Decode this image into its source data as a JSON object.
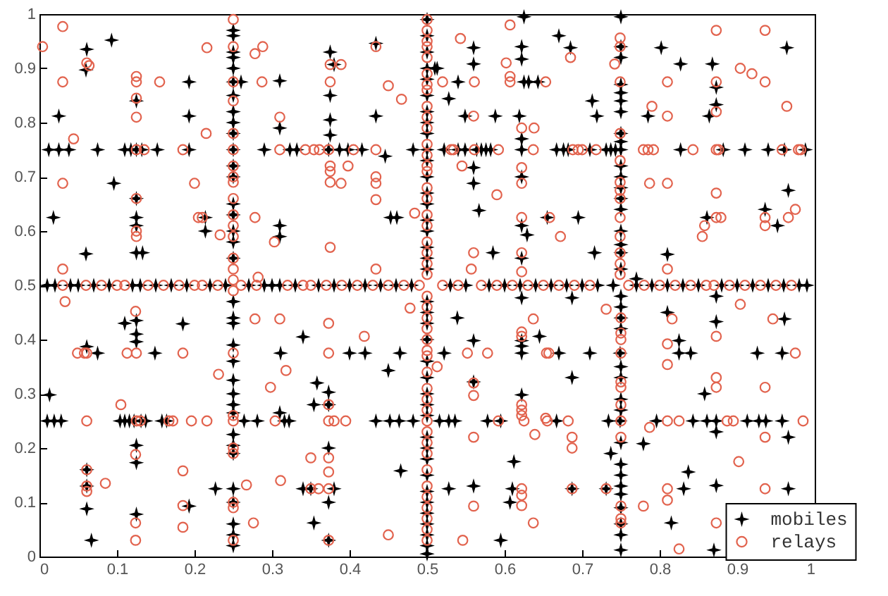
{
  "chart_data": {
    "type": "scatter",
    "xlim": [
      0,
      1
    ],
    "ylim": [
      0,
      1
    ],
    "xticks": [
      0,
      0.1,
      0.2,
      0.3,
      0.4,
      0.5,
      0.6,
      0.7,
      0.8,
      0.9,
      1
    ],
    "yticks": [
      0,
      0.1,
      0.2,
      0.3,
      0.4,
      0.5,
      0.6,
      0.7,
      0.8,
      0.9,
      1
    ],
    "grid": false,
    "legend": "bottom right",
    "series": [
      {
        "name": "mobiles",
        "color": "#000000",
        "marker": "star",
        "x": [
          0.061,
          0.06,
          0.093,
          0.025,
          0.012,
          0.025,
          0.038,
          0.075,
          0.11,
          0.118,
          0.125,
          0.132,
          0.152,
          0.096,
          0.018,
          0.06,
          0.125,
          0.125,
          0.125,
          0.125,
          0.125,
          0.133,
          0.193,
          0.193,
          0.193,
          0.25,
          0.25,
          0.25,
          0.25,
          0.25,
          0.25,
          0.25,
          0.25,
          0.25,
          0.25,
          0.25,
          0.25,
          0.25,
          0.25,
          0.25,
          0.25,
          0.25,
          0.25,
          0.26,
          0.214,
          0.214,
          0.31,
          0.31,
          0.31,
          0.31,
          0.29,
          0.323,
          0.332,
          0.373,
          0.387,
          0.398,
          0.416,
          0.375,
          0.375,
          0.375,
          0.375,
          0.38,
          0.434,
          0.434,
          0.446,
          0.453,
          0.461,
          0.482,
          0.51,
          0.625,
          0.67,
          0.685,
          0.56,
          0.56,
          0.622,
          0.622,
          0.513,
          0.54,
          0.625,
          0.631,
          0.643,
          0.528,
          0.713,
          0.549,
          0.588,
          0.619,
          0.719,
          0.785,
          0.864,
          0.75,
          0.75,
          0.75,
          0.75,
          0.75,
          0.75,
          0.75,
          0.75,
          0.75,
          0.75,
          0.75,
          0.75,
          0.75,
          0.75,
          0.75,
          0.75,
          0.75,
          0.75,
          0.75,
          0.802,
          0.827,
          0.868,
          0.873,
          0.873,
          0.964,
          0.522,
          0.54,
          0.549,
          0.564,
          0.57,
          0.576,
          0.582,
          0.622,
          0.667,
          0.676,
          0.682,
          0.71,
          0.731,
          0.737,
          0.743,
          0.827,
          0.882,
          0.91,
          0.94,
          0.961,
          0.988,
          0.56,
          0.56,
          0.622,
          0.622,
          0.567,
          0.655,
          0.695,
          0.622,
          0.629,
          0.585,
          0.716,
          0.622,
          0.77,
          0.81,
          0.861,
          0.936,
          0.952,
          0.966,
          0.013,
          0.01,
          0.019,
          0.028,
          0.104,
          0.11,
          0.116,
          0.122,
          0.131,
          0.137,
          0.158,
          0.164,
          0.264,
          0.281,
          0.316,
          0.322,
          0.434,
          0.452,
          0.464,
          0.482,
          0.061,
          0.061,
          0.061,
          0.067,
          0.061,
          0.075,
          0.11,
          0.125,
          0.125,
          0.125,
          0.125,
          0.125,
          0.125,
          0.149,
          0.185,
          0.193,
          0.227,
          0.25,
          0.25,
          0.25,
          0.25,
          0.25,
          0.25,
          0.25,
          0.25,
          0.25,
          0.25,
          0.25,
          0.25,
          0.25,
          0.25,
          0.25,
          0.25,
          0.25,
          0.311,
          0.31,
          0.34,
          0.34,
          0.35,
          0.38,
          0.358,
          0.354,
          0.354,
          0.373,
          0.373,
          0.373,
          0.373,
          0.373,
          0.4,
          0.42,
          0.465,
          0.45,
          0.466,
          0.622,
          0.687,
          0.539,
          0.56,
          0.522,
          0.622,
          0.622,
          0.622,
          0.645,
          0.67,
          0.71,
          0.749,
          0.687,
          0.622,
          0.56,
          0.516,
          0.528,
          0.536,
          0.578,
          0.595,
          0.667,
          0.734,
          0.749,
          0.796,
          0.843,
          0.861,
          0.873,
          0.913,
          0.928,
          0.937,
          0.958,
          0.873,
          0.966,
          0.779,
          0.737,
          0.612,
          0.837,
          0.528,
          0.56,
          0.61,
          0.607,
          0.687,
          0.731,
          0.831,
          0.873,
          0.966,
          0.81,
          0.825,
          0.825,
          0.84,
          0.873,
          0.873,
          0.858,
          0.926,
          0.958,
          0.961,
          0.815,
          0.87,
          0.595,
          0.75,
          0.75,
          0.75,
          0.75,
          0.75,
          0.75,
          0.75,
          0.75,
          0.75,
          0.75,
          0.75,
          0.75,
          0.75,
          0.75,
          0.75,
          0.75,
          0.75,
          0.01,
          0.02,
          0.04,
          0.05,
          0.07,
          0.09,
          0.12,
          0.13,
          0.15,
          0.17,
          0.19,
          0.22,
          0.24,
          0.27,
          0.29,
          0.3,
          0.31,
          0.33,
          0.36,
          0.38,
          0.4,
          0.42,
          0.44,
          0.46,
          0.48,
          0.53,
          0.55,
          0.58,
          0.6,
          0.62,
          0.64,
          0.66,
          0.68,
          0.7,
          0.72,
          0.74,
          0.77,
          0.79,
          0.81,
          0.83,
          0.85,
          0.88,
          0.9,
          0.92,
          0.94,
          0.96,
          0.98,
          0.99,
          0.5,
          0.5,
          0.5,
          0.5,
          0.5,
          0.5,
          0.5,
          0.5,
          0.5,
          0.5,
          0.5,
          0.5,
          0.5,
          0.5,
          0.5,
          0.5,
          0.5,
          0.5,
          0.5,
          0.5,
          0.5,
          0.5,
          0.5,
          0.5,
          0.5,
          0.5,
          0.5,
          0.5,
          0.5,
          0.5,
          0.5,
          0.5,
          0.5,
          0.5,
          0.5,
          0.5,
          0.5,
          0.5,
          0.5
        ],
        "values": [
          0.935,
          0.897,
          0.952,
          0.812,
          0.75,
          0.75,
          0.75,
          0.75,
          0.75,
          0.75,
          0.75,
          0.75,
          0.75,
          0.688,
          0.625,
          0.558,
          0.84,
          0.66,
          0.625,
          0.61,
          0.56,
          0.56,
          0.875,
          0.812,
          0.75,
          0.97,
          0.96,
          0.93,
          0.92,
          0.9,
          0.875,
          0.85,
          0.82,
          0.8,
          0.78,
          0.75,
          0.72,
          0.7,
          0.65,
          0.63,
          0.6,
          0.58,
          0.55,
          0.875,
          0.625,
          0.6,
          0.877,
          0.79,
          0.61,
          0.59,
          0.75,
          0.75,
          0.75,
          0.75,
          0.75,
          0.75,
          0.75,
          0.93,
          0.85,
          0.805,
          0.777,
          0.907,
          0.946,
          0.812,
          0.738,
          0.625,
          0.625,
          0.75,
          0.9,
          0.995,
          0.96,
          0.938,
          0.938,
          0.908,
          0.94,
          0.917,
          0.9,
          0.875,
          0.875,
          0.875,
          0.875,
          0.844,
          0.84,
          0.812,
          0.812,
          0.812,
          0.812,
          0.812,
          0.812,
          0.995,
          0.94,
          0.92,
          0.87,
          0.855,
          0.84,
          0.82,
          0.78,
          0.765,
          0.75,
          0.72,
          0.7,
          0.68,
          0.66,
          0.64,
          0.6,
          0.575,
          0.56,
          0.53,
          0.938,
          0.908,
          0.908,
          0.865,
          0.833,
          0.938,
          0.75,
          0.75,
          0.75,
          0.75,
          0.75,
          0.75,
          0.75,
          0.75,
          0.75,
          0.75,
          0.75,
          0.75,
          0.75,
          0.75,
          0.75,
          0.75,
          0.75,
          0.75,
          0.75,
          0.75,
          0.75,
          0.717,
          0.688,
          0.77,
          0.7,
          0.638,
          0.625,
          0.625,
          0.61,
          0.593,
          0.56,
          0.56,
          0.55,
          0.512,
          0.557,
          0.625,
          0.64,
          0.61,
          0.675,
          0.298,
          0.25,
          0.25,
          0.25,
          0.25,
          0.25,
          0.25,
          0.25,
          0.25,
          0.25,
          0.25,
          0.25,
          0.25,
          0.25,
          0.25,
          0.25,
          0.25,
          0.25,
          0.25,
          0.25,
          0.16,
          0.13,
          0.088,
          0.03,
          0.387,
          0.375,
          0.43,
          0.435,
          0.41,
          0.396,
          0.205,
          0.173,
          0.078,
          0.375,
          0.429,
          0.093,
          0.125,
          0.47,
          0.44,
          0.43,
          0.39,
          0.36,
          0.325,
          0.3,
          0.28,
          0.265,
          0.225,
          0.205,
          0.19,
          0.125,
          0.1,
          0.06,
          0.04,
          0.02,
          0.375,
          0.265,
          0.405,
          0.125,
          0.125,
          0.125,
          0.32,
          0.28,
          0.062,
          0.303,
          0.28,
          0.2,
          0.1,
          0.03,
          0.375,
          0.375,
          0.375,
          0.343,
          0.158,
          0.477,
          0.477,
          0.44,
          0.398,
          0.375,
          0.398,
          0.388,
          0.375,
          0.406,
          0.375,
          0.375,
          0.375,
          0.33,
          0.298,
          0.322,
          0.25,
          0.25,
          0.25,
          0.25,
          0.25,
          0.25,
          0.25,
          0.25,
          0.25,
          0.25,
          0.25,
          0.25,
          0.25,
          0.25,
          0.25,
          0.25,
          0.23,
          0.22,
          0.208,
          0.19,
          0.175,
          0.156,
          0.125,
          0.13,
          0.125,
          0.1,
          0.125,
          0.125,
          0.125,
          0.131,
          0.125,
          0.45,
          0.398,
          0.375,
          0.375,
          0.48,
          0.433,
          0.3,
          0.375,
          0.375,
          0.438,
          0.062,
          0.012,
          0.03,
          0.48,
          0.46,
          0.44,
          0.42,
          0.35,
          0.33,
          0.29,
          0.27,
          0.21,
          0.17,
          0.15,
          0.13,
          0.115,
          0.09,
          0.06,
          0.04,
          0.012,
          0.5,
          0.5,
          0.5,
          0.5,
          0.5,
          0.5,
          0.5,
          0.5,
          0.5,
          0.5,
          0.5,
          0.5,
          0.5,
          0.5,
          0.5,
          0.5,
          0.5,
          0.5,
          0.5,
          0.5,
          0.5,
          0.5,
          0.5,
          0.5,
          0.5,
          0.5,
          0.5,
          0.5,
          0.5,
          0.5,
          0.5,
          0.5,
          0.5,
          0.5,
          0.5,
          0.5,
          0.5,
          0.5,
          0.5,
          0.5,
          0.5,
          0.5,
          0.5,
          0.5,
          0.5,
          0.5,
          0.5,
          0.5,
          0.005,
          0.02,
          0.04,
          0.06,
          0.08,
          0.1,
          0.12,
          0.15,
          0.18,
          0.2,
          0.22,
          0.26,
          0.28,
          0.3,
          0.33,
          0.36,
          0.4,
          0.43,
          0.45,
          0.47,
          0.53,
          0.55,
          0.57,
          0.6,
          0.62,
          0.65,
          0.67,
          0.7,
          0.73,
          0.75,
          0.78,
          0.8,
          0.82,
          0.85,
          0.88,
          0.9,
          0.93,
          0.96,
          0.99
        ]
      },
      {
        "name": "relays",
        "color": "#e2634e",
        "marker": "circle",
        "x": [
          0.004,
          0.03,
          0.03,
          0.03,
          0.044,
          0.03,
          0.061,
          0.064,
          0.125,
          0.125,
          0.125,
          0.125,
          0.125,
          0.125,
          0.125,
          0.125,
          0.155,
          0.185,
          0.2,
          0.205,
          0.21,
          0.215,
          0.216,
          0.233,
          0.25,
          0.25,
          0.25,
          0.25,
          0.25,
          0.25,
          0.25,
          0.25,
          0.25,
          0.25,
          0.25,
          0.25,
          0.25,
          0.25,
          0.25,
          0.25,
          0.278,
          0.288,
          0.287,
          0.278,
          0.282,
          0.303,
          0.31,
          0.31,
          0.343,
          0.354,
          0.361,
          0.373,
          0.405,
          0.434,
          0.375,
          0.375,
          0.375,
          0.375,
          0.375,
          0.375,
          0.389,
          0.398,
          0.389,
          0.434,
          0.434,
          0.434,
          0.434,
          0.434,
          0.45,
          0.467,
          0.484,
          0.135,
          0.543,
          0.607,
          0.602,
          0.607,
          0.607,
          0.561,
          0.52,
          0.653,
          0.685,
          0.742,
          0.749,
          0.749,
          0.749,
          0.873,
          0.936,
          0.904,
          0.919,
          0.936,
          0.964,
          0.81,
          0.873,
          0.79,
          0.81,
          0.873,
          0.56,
          0.622,
          0.638,
          0.531,
          0.534,
          0.561,
          0.592,
          0.637,
          0.688,
          0.695,
          0.7,
          0.718,
          0.779,
          0.785,
          0.792,
          0.843,
          0.873,
          0.876,
          0.958,
          0.979,
          0.982,
          0.545,
          0.59,
          0.622,
          0.622,
          0.749,
          0.749,
          0.749,
          0.749,
          0.749,
          0.787,
          0.81,
          0.873,
          0.873,
          0.879,
          0.936,
          0.936,
          0.966,
          0.975,
          0.858,
          0.855,
          0.672,
          0.658,
          0.622,
          0.622,
          0.622,
          0.56,
          0.557,
          0.749,
          0.749,
          0.749,
          0.749,
          0.81,
          0.749,
          0.033,
          0.049,
          0.058,
          0.061,
          0.061,
          0.061,
          0.061,
          0.061,
          0.085,
          0.105,
          0.113,
          0.125,
          0.124,
          0.125,
          0.13,
          0.124,
          0.124,
          0.124,
          0.167,
          0.172,
          0.185,
          0.185,
          0.185,
          0.185,
          0.196,
          0.216,
          0.231,
          0.25,
          0.25,
          0.25,
          0.25,
          0.25,
          0.25,
          0.25,
          0.25,
          0.25,
          0.267,
          0.278,
          0.276,
          0.298,
          0.31,
          0.311,
          0.304,
          0.318,
          0.35,
          0.35,
          0.36,
          0.373,
          0.373,
          0.373,
          0.373,
          0.373,
          0.38,
          0.395,
          0.373,
          0.373,
          0.373,
          0.419,
          0.45,
          0.478,
          0.513,
          0.552,
          0.578,
          0.56,
          0.56,
          0.56,
          0.56,
          0.546,
          0.637,
          0.622,
          0.622,
          0.654,
          0.657,
          0.622,
          0.622,
          0.622,
          0.625,
          0.653,
          0.655,
          0.639,
          0.592,
          0.682,
          0.687,
          0.687,
          0.622,
          0.622,
          0.622,
          0.637,
          0.687,
          0.731,
          0.731,
          0.75,
          0.75,
          0.75,
          0.75,
          0.75,
          0.75,
          0.75,
          0.75,
          0.75,
          0.75,
          0.75,
          0.75,
          0.779,
          0.787,
          0.81,
          0.825,
          0.816,
          0.81,
          0.81,
          0.81,
          0.81,
          0.825,
          0.873,
          0.873,
          0.873,
          0.887,
          0.895,
          0.873,
          0.904,
          0.902,
          0.936,
          0.936,
          0.936,
          0.946,
          0.975,
          0.985,
          0.03,
          0.06,
          0.08,
          0.1,
          0.11,
          0.14,
          0.16,
          0.18,
          0.2,
          0.21,
          0.23,
          0.26,
          0.28,
          0.32,
          0.34,
          0.35,
          0.37,
          0.39,
          0.41,
          0.43,
          0.45,
          0.47,
          0.49,
          0.52,
          0.54,
          0.57,
          0.59,
          0.61,
          0.63,
          0.65,
          0.67,
          0.69,
          0.71,
          0.76,
          0.78,
          0.8,
          0.82,
          0.84,
          0.86,
          0.87,
          0.89,
          0.91,
          0.93,
          0.95,
          0.97,
          0.5,
          0.5,
          0.5,
          0.5,
          0.5,
          0.5,
          0.5,
          0.5,
          0.5,
          0.5,
          0.5,
          0.5,
          0.5,
          0.5,
          0.5,
          0.5,
          0.5,
          0.5,
          0.5,
          0.5,
          0.5,
          0.5,
          0.5,
          0.5,
          0.5,
          0.5,
          0.5,
          0.5,
          0.5,
          0.5,
          0.5,
          0.5,
          0.5,
          0.5,
          0.5,
          0.5,
          0.5,
          0.5,
          0.5,
          0.5,
          0.5,
          0.5,
          0.5,
          0.5,
          0.5
        ],
        "values": [
          0.94,
          0.977,
          0.875,
          0.688,
          0.77,
          0.53,
          0.91,
          0.905,
          0.885,
          0.875,
          0.845,
          0.81,
          0.75,
          0.66,
          0.6,
          0.59,
          0.875,
          0.75,
          0.688,
          0.625,
          0.625,
          0.78,
          0.938,
          0.593,
          0.99,
          0.94,
          0.875,
          0.84,
          0.78,
          0.75,
          0.72,
          0.7,
          0.69,
          0.66,
          0.63,
          0.61,
          0.59,
          0.55,
          0.53,
          0.51,
          0.927,
          0.94,
          0.875,
          0.625,
          0.515,
          0.58,
          0.81,
          0.75,
          0.75,
          0.75,
          0.75,
          0.75,
          0.75,
          0.75,
          0.907,
          0.875,
          0.72,
          0.71,
          0.69,
          0.57,
          0.688,
          0.72,
          0.907,
          0.94,
          0.7,
          0.688,
          0.658,
          0.53,
          0.868,
          0.843,
          0.633,
          0.75,
          0.955,
          0.98,
          0.91,
          0.885,
          0.875,
          0.875,
          0.875,
          0.875,
          0.92,
          0.908,
          0.956,
          0.94,
          0.875,
          0.97,
          0.97,
          0.9,
          0.89,
          0.875,
          0.83,
          0.875,
          0.875,
          0.83,
          0.812,
          0.82,
          0.812,
          0.79,
          0.79,
          0.75,
          0.75,
          0.75,
          0.75,
          0.75,
          0.75,
          0.75,
          0.75,
          0.75,
          0.75,
          0.75,
          0.75,
          0.75,
          0.75,
          0.75,
          0.75,
          0.75,
          0.75,
          0.72,
          0.667,
          0.717,
          0.688,
          0.78,
          0.73,
          0.69,
          0.675,
          0.66,
          0.688,
          0.688,
          0.67,
          0.625,
          0.625,
          0.625,
          0.61,
          0.625,
          0.64,
          0.61,
          0.59,
          0.59,
          0.625,
          0.625,
          0.56,
          0.525,
          0.56,
          0.53,
          0.59,
          0.56,
          0.54,
          0.52,
          0.53,
          0.625,
          0.47,
          0.375,
          0.375,
          0.375,
          0.25,
          0.16,
          0.13,
          0.12,
          0.135,
          0.28,
          0.375,
          0.375,
          0.452,
          0.25,
          0.25,
          0.188,
          0.062,
          0.03,
          0.25,
          0.25,
          0.375,
          0.158,
          0.094,
          0.054,
          0.25,
          0.25,
          0.336,
          0.49,
          0.375,
          0.26,
          0.25,
          0.2,
          0.19,
          0.1,
          0.09,
          0.03,
          0.132,
          0.438,
          0.062,
          0.312,
          0.438,
          0.14,
          0.25,
          0.343,
          0.182,
          0.125,
          0.125,
          0.125,
          0.43,
          0.375,
          0.28,
          0.25,
          0.25,
          0.25,
          0.182,
          0.156,
          0.03,
          0.406,
          0.04,
          0.458,
          0.35,
          0.375,
          0.375,
          0.32,
          0.297,
          0.22,
          0.093,
          0.03,
          0.438,
          0.414,
          0.406,
          0.375,
          0.375,
          0.28,
          0.27,
          0.26,
          0.25,
          0.255,
          0.25,
          0.225,
          0.25,
          0.25,
          0.22,
          0.2,
          0.125,
          0.113,
          0.094,
          0.062,
          0.125,
          0.125,
          0.456,
          0.44,
          0.412,
          0.4,
          0.375,
          0.322,
          0.312,
          0.28,
          0.25,
          0.22,
          0.093,
          0.07,
          0.062,
          0.093,
          0.238,
          0.25,
          0.25,
          0.438,
          0.392,
          0.354,
          0.125,
          0.104,
          0.014,
          0.406,
          0.33,
          0.312,
          0.25,
          0.25,
          0.062,
          0.465,
          0.175,
          0.312,
          0.22,
          0.125,
          0.438,
          0.375,
          0.25,
          0.5,
          0.5,
          0.5,
          0.5,
          0.5,
          0.5,
          0.5,
          0.5,
          0.5,
          0.5,
          0.5,
          0.5,
          0.5,
          0.5,
          0.5,
          0.5,
          0.5,
          0.5,
          0.5,
          0.5,
          0.5,
          0.5,
          0.5,
          0.5,
          0.5,
          0.5,
          0.5,
          0.5,
          0.5,
          0.5,
          0.5,
          0.5,
          0.5,
          0.5,
          0.5,
          0.5,
          0.5,
          0.5,
          0.5,
          0.5,
          0.5,
          0.5,
          0.5,
          0.5,
          0.5,
          0.03,
          0.05,
          0.07,
          0.09,
          0.11,
          0.13,
          0.16,
          0.19,
          0.21,
          0.23,
          0.25,
          0.27,
          0.29,
          0.31,
          0.34,
          0.37,
          0.38,
          0.4,
          0.42,
          0.44,
          0.46,
          0.48,
          0.52,
          0.54,
          0.56,
          0.58,
          0.61,
          0.63,
          0.66,
          0.68,
          0.71,
          0.72,
          0.74,
          0.76,
          0.79,
          0.81,
          0.83,
          0.86,
          0.87,
          0.89,
          0.92,
          0.94,
          0.95,
          0.97,
          0.99
        ]
      }
    ]
  }
}
